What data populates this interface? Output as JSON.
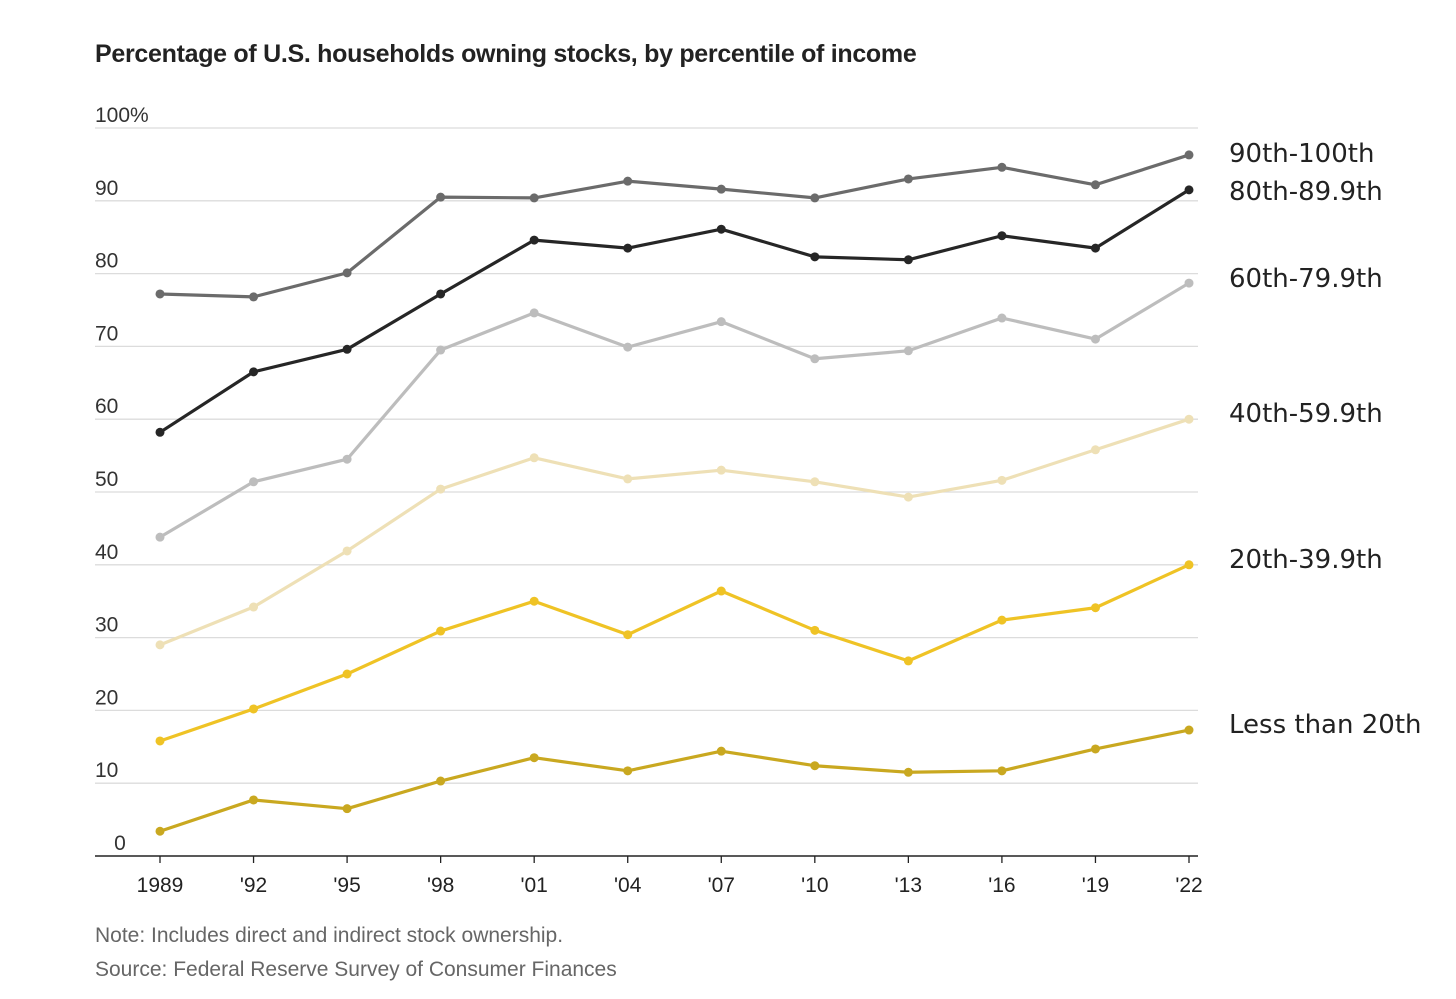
{
  "chart_data": {
    "type": "line",
    "title": "Percentage of U.S. households owning stocks, by percentile of income",
    "xlabel": "",
    "ylabel": "",
    "ylim": [
      0,
      100
    ],
    "grid": true,
    "legend": "direct labels at right",
    "x": [
      "1989",
      "'92",
      "'95",
      "'98",
      "'01",
      "'04",
      "'07",
      "'10",
      "'13",
      "'16",
      "'19",
      "'22"
    ],
    "y_ticks": [
      "0",
      "10",
      "20",
      "30",
      "40",
      "50",
      "60",
      "70",
      "80",
      "90",
      "100%"
    ],
    "series": [
      {
        "name": "90th-100th",
        "color": "#6b6b6b",
        "values": [
          77.2,
          76.8,
          80.1,
          90.5,
          90.4,
          92.7,
          91.6,
          90.4,
          93.0,
          94.6,
          92.2,
          96.3
        ]
      },
      {
        "name": "80th-89.9th",
        "color": "#262626",
        "values": [
          58.2,
          66.5,
          69.6,
          77.2,
          84.6,
          83.5,
          86.1,
          82.3,
          81.9,
          85.2,
          83.5,
          91.5
        ]
      },
      {
        "name": "60th-79.9th",
        "color": "#bdbdbd",
        "values": [
          43.8,
          51.4,
          54.5,
          69.5,
          74.6,
          69.9,
          73.4,
          68.3,
          69.4,
          73.9,
          71.0,
          78.7
        ]
      },
      {
        "name": "40th-59.9th",
        "color": "#eee0b6",
        "values": [
          29.0,
          34.2,
          41.9,
          50.4,
          54.7,
          51.8,
          53.0,
          51.4,
          49.3,
          51.6,
          55.8,
          60.0
        ]
      },
      {
        "name": "20th-39.9th",
        "color": "#efc325",
        "values": [
          15.8,
          20.2,
          25.0,
          30.9,
          35.0,
          30.4,
          36.4,
          31.0,
          26.8,
          32.4,
          34.1,
          40.0
        ]
      },
      {
        "name": "Less than 20th",
        "color": "#c9a820",
        "values": [
          3.4,
          7.7,
          6.5,
          10.3,
          13.5,
          11.7,
          14.4,
          12.4,
          11.5,
          11.7,
          14.7,
          17.3
        ]
      }
    ]
  },
  "footer": {
    "note": "Note: Includes direct and indirect stock ownership.",
    "source": "Source: Federal Reserve Survey of Consumer Finances"
  }
}
